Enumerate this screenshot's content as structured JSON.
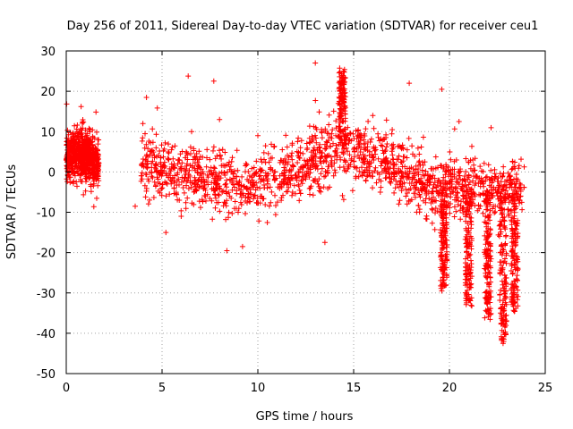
{
  "chart_data": {
    "type": "scatter",
    "title": "Day 256 of 2011, Sidereal Day-to-day VTEC variation (SDTVAR) for receiver ceu1",
    "xlabel": "GPS time / hours",
    "ylabel": "SDTVAR / TECUs",
    "xlim": [
      0,
      25
    ],
    "ylim": [
      -50,
      30
    ],
    "x_ticks": [
      0,
      5,
      10,
      15,
      20,
      25
    ],
    "y_ticks": [
      -50,
      -40,
      -30,
      -20,
      -10,
      0,
      10,
      20,
      30
    ],
    "x_tick_labels": [
      "0",
      "5",
      "10",
      "15",
      "20",
      "25"
    ],
    "y_tick_labels": [
      "-50",
      "-40",
      "-30",
      "-20",
      "-10",
      "0",
      "10",
      "20",
      "30"
    ],
    "grid": true,
    "legend": "none",
    "marker": "+",
    "series": [
      {
        "name": "ceu1",
        "color": "#ff0000",
        "envelope": {
          "description": "Dense scatter cloud approximated by per-hour mean and spread; data gap between 1.7 h and 3.7 h",
          "segments": [
            {
              "x_start": 0.0,
              "x_end": 1.7,
              "points": [
                [
                  0.0,
                  4
                ],
                [
                  0.5,
                  5
                ],
                [
                  1.0,
                  4
                ],
                [
                  1.5,
                  3
                ],
                [
                  1.7,
                  2
                ]
              ],
              "spread": 4
            },
            {
              "x_start": 3.9,
              "x_end": 23.9,
              "points": [
                [
                  3.9,
                  3
                ],
                [
                  5,
                  1
                ],
                [
                  6,
                  0
                ],
                [
                  7,
                  -1
                ],
                [
                  8,
                  -2
                ],
                [
                  9,
                  -3
                ],
                [
                  10,
                  -3
                ],
                [
                  11,
                  -1
                ],
                [
                  12,
                  1
                ],
                [
                  13,
                  3
                ],
                [
                  14,
                  5
                ],
                [
                  15,
                  6
                ],
                [
                  16,
                  4
                ],
                [
                  17,
                  2
                ],
                [
                  18,
                  -1
                ],
                [
                  19,
                  -4
                ],
                [
                  20,
                  -4
                ],
                [
                  21,
                  -3
                ],
                [
                  22,
                  -4
                ],
                [
                  23,
                  -5
                ],
                [
                  23.9,
                  -4
                ]
              ],
              "spread": 5
            }
          ]
        },
        "excursions": [
          {
            "x": 19.7,
            "y_min": -29,
            "note": "negative spike"
          },
          {
            "x": 21.0,
            "y_min": -33,
            "note": "negative spike"
          },
          {
            "x": 22.0,
            "y_min": -36,
            "note": "negative spike"
          },
          {
            "x": 22.8,
            "y_min": -42,
            "note": "negative spike"
          },
          {
            "x": 23.4,
            "y_min": -35,
            "note": "negative spike"
          },
          {
            "x": 14.4,
            "y_max": 25,
            "note": "positive spike"
          }
        ],
        "outliers": [
          [
            3.6,
            -8.5
          ],
          [
            4.0,
            12
          ],
          [
            5.2,
            -15
          ],
          [
            6.0,
            -11
          ],
          [
            7.7,
            22.5
          ],
          [
            9.2,
            -18.5
          ],
          [
            13.0,
            27
          ],
          [
            13.5,
            -17.5
          ],
          [
            14.2,
            17
          ],
          [
            17.9,
            22
          ],
          [
            19.6,
            20.5
          ],
          [
            20.5,
            12.5
          ],
          [
            19.6,
            -29.5
          ],
          [
            22.8,
            -42.5
          ],
          [
            8.0,
            13
          ],
          [
            10.0,
            9
          ],
          [
            16.0,
            14
          ]
        ]
      }
    ]
  }
}
